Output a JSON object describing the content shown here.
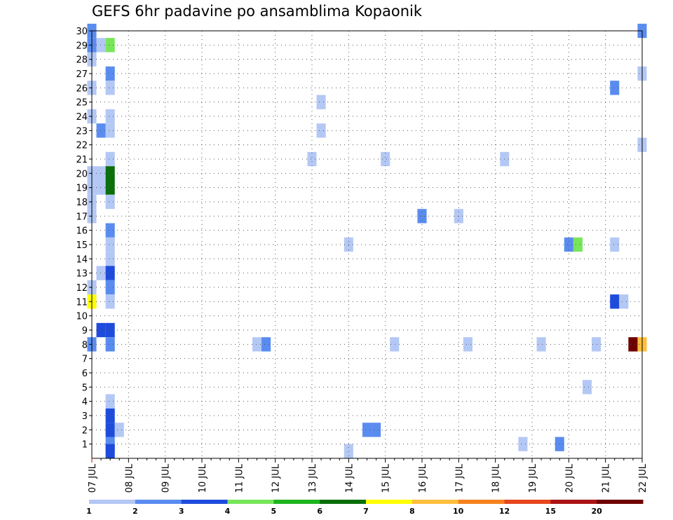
{
  "chart_data": {
    "type": "heatmap",
    "title": "GEFS 6hr padavine po ansamblima Kopaonik",
    "x_ticks": [
      "07 JUL",
      "08 JUL",
      "09 JUL",
      "10 JUL",
      "11 JUL",
      "12 JUL",
      "13 JUL",
      "14 JUL",
      "15 JUL",
      "16 JUL",
      "17 JUL",
      "18 JUL",
      "19 JUL",
      "20 JUL",
      "21 JUL",
      "22 JUL"
    ],
    "y_ticks": [
      "1",
      "2",
      "3",
      "4",
      "5",
      "6",
      "7",
      "8",
      "9",
      "10",
      "11",
      "12",
      "13",
      "14",
      "15",
      "16",
      "17",
      "18",
      "19",
      "20",
      "21",
      "22",
      "23",
      "24",
      "25",
      "26",
      "27",
      "28",
      "29",
      "30"
    ],
    "xlim": [
      "07 JUL 00Z",
      "22 JUL 00Z"
    ],
    "ylim": [
      0,
      30
    ],
    "x_step": "6hr",
    "grid": true,
    "colorbar": {
      "labels": [
        "1",
        "2",
        "3",
        "4",
        "5",
        "6",
        "7",
        "8",
        "10",
        "12",
        "15",
        "20"
      ],
      "colors": [
        "#b4c8f5",
        "#5a8cf0",
        "#1e4bdc",
        "#78e65a",
        "#1eb41e",
        "#0a6e0a",
        "#ffff00",
        "#ffbe3c",
        "#f5821e",
        "#e6461e",
        "#aa1414",
        "#6e0000"
      ]
    },
    "cells_note": "each cell: x = 6-hourly step index from 07 JUL 00Z, y = ensemble member, c = colour class (0..11)",
    "cells": [
      {
        "x": 0,
        "y": 30,
        "c": 1
      },
      {
        "x": 0,
        "y": 29,
        "c": 1
      },
      {
        "x": 1,
        "y": 29,
        "c": 0
      },
      {
        "x": 2,
        "y": 29,
        "c": 3
      },
      {
        "x": 0,
        "y": 28,
        "c": 0
      },
      {
        "x": 2,
        "y": 27,
        "c": 1
      },
      {
        "x": 0,
        "y": 26,
        "c": 0
      },
      {
        "x": 2,
        "y": 26,
        "c": 0
      },
      {
        "x": 0,
        "y": 24,
        "c": 0
      },
      {
        "x": 2,
        "y": 24,
        "c": 0
      },
      {
        "x": 1,
        "y": 23,
        "c": 1
      },
      {
        "x": 2,
        "y": 23,
        "c": 0
      },
      {
        "x": 2,
        "y": 21,
        "c": 0
      },
      {
        "x": 0,
        "y": 20,
        "c": 0
      },
      {
        "x": 1,
        "y": 20,
        "c": 0
      },
      {
        "x": 2,
        "y": 20,
        "c": 5
      },
      {
        "x": 0,
        "y": 19,
        "c": 0
      },
      {
        "x": 1,
        "y": 19,
        "c": 0
      },
      {
        "x": 2,
        "y": 19,
        "c": 5
      },
      {
        "x": 2,
        "y": 18,
        "c": 0
      },
      {
        "x": 0,
        "y": 18,
        "c": 0
      },
      {
        "x": 0,
        "y": 17,
        "c": 0
      },
      {
        "x": 2,
        "y": 16,
        "c": 1
      },
      {
        "x": 2,
        "y": 15,
        "c": 0
      },
      {
        "x": 2,
        "y": 14,
        "c": 0
      },
      {
        "x": 1,
        "y": 13,
        "c": 0
      },
      {
        "x": 2,
        "y": 13,
        "c": 2
      },
      {
        "x": 2,
        "y": 12,
        "c": 1
      },
      {
        "x": 0,
        "y": 12,
        "c": 0
      },
      {
        "x": 0,
        "y": 11,
        "c": 6
      },
      {
        "x": 2,
        "y": 11,
        "c": 0
      },
      {
        "x": 1,
        "y": 9,
        "c": 2
      },
      {
        "x": 2,
        "y": 9,
        "c": 2
      },
      {
        "x": 0,
        "y": 8,
        "c": 1
      },
      {
        "x": 2,
        "y": 8,
        "c": 1
      },
      {
        "x": 2,
        "y": 4,
        "c": 0
      },
      {
        "x": 2,
        "y": 3,
        "c": 2
      },
      {
        "x": 2,
        "y": 2,
        "c": 2
      },
      {
        "x": 3,
        "y": 2,
        "c": 0
      },
      {
        "x": 2,
        "y": 1,
        "c": 1
      },
      {
        "x": 2,
        "y": 0.5,
        "c": 2
      },
      {
        "x": 25,
        "y": 25,
        "c": 0
      },
      {
        "x": 25,
        "y": 23,
        "c": 0
      },
      {
        "x": 24,
        "y": 21,
        "c": 0
      },
      {
        "x": 18,
        "y": 8,
        "c": 0
      },
      {
        "x": 19,
        "y": 8,
        "c": 1
      },
      {
        "x": 28,
        "y": 15,
        "c": 0
      },
      {
        "x": 28,
        "y": 0.5,
        "c": 0
      },
      {
        "x": 30,
        "y": 2,
        "c": 1
      },
      {
        "x": 31,
        "y": 2,
        "c": 1
      },
      {
        "x": 32,
        "y": 21,
        "c": 0
      },
      {
        "x": 33,
        "y": 8,
        "c": 0
      },
      {
        "x": 36,
        "y": 17,
        "c": 1
      },
      {
        "x": 40,
        "y": 17,
        "c": 0
      },
      {
        "x": 41,
        "y": 8,
        "c": 0
      },
      {
        "x": 45,
        "y": 21,
        "c": 0
      },
      {
        "x": 47,
        "y": 1,
        "c": 0
      },
      {
        "x": 49,
        "y": 8,
        "c": 0
      },
      {
        "x": 51,
        "y": 1,
        "c": 1
      },
      {
        "x": 52,
        "y": 15,
        "c": 1
      },
      {
        "x": 53,
        "y": 15,
        "c": 3
      },
      {
        "x": 54,
        "y": 5,
        "c": 0
      },
      {
        "x": 55,
        "y": 8,
        "c": 0
      },
      {
        "x": 57,
        "y": 26,
        "c": 1
      },
      {
        "x": 57,
        "y": 15,
        "c": 0
      },
      {
        "x": 57,
        "y": 11,
        "c": 2
      },
      {
        "x": 58,
        "y": 11,
        "c": 0
      },
      {
        "x": 59,
        "y": 8,
        "c": 11
      },
      {
        "x": 60,
        "y": 8,
        "c": 7
      },
      {
        "x": 60,
        "y": 30,
        "c": 1
      },
      {
        "x": 60,
        "y": 27,
        "c": 0
      },
      {
        "x": 60,
        "y": 22,
        "c": 0
      }
    ]
  }
}
